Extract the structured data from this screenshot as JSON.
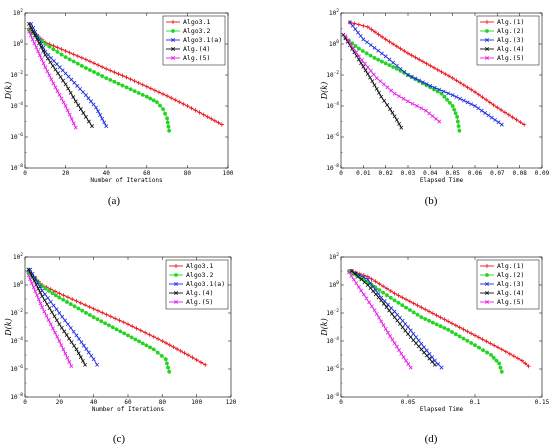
{
  "colors": {
    "red": "#e8141e",
    "green": "#21d521",
    "blue": "#1f2ee0",
    "black": "#111111",
    "magenta": "#e81ce8"
  },
  "chart_data": [
    {
      "panel_label": "(a)",
      "type": "line",
      "xlabel": "Number of Iterations",
      "ylabel": "D(k)",
      "xlim": [
        0,
        100
      ],
      "xticks": [
        0,
        20,
        40,
        60,
        80,
        100
      ],
      "yscale": "log",
      "ylim_exp": [
        -8,
        2
      ],
      "yticks": [
        "10^-8",
        "10^-6",
        "10^-4",
        "10^-2",
        "10^0",
        "10^2"
      ],
      "legend_position": "top-right",
      "series": [
        {
          "name": "Algo3.1",
          "color": "red",
          "marker": "plus",
          "points": [
            [
              2,
              1.0
            ],
            [
              10,
              0.1
            ],
            [
              20,
              -0.45
            ],
            [
              30,
              -1.0
            ],
            [
              40,
              -1.6
            ],
            [
              50,
              -2.15
            ],
            [
              60,
              -2.75
            ],
            [
              70,
              -3.35
            ],
            [
              80,
              -4.0
            ],
            [
              90,
              -4.7
            ],
            [
              97,
              -5.2
            ]
          ]
        },
        {
          "name": "Algo3.2",
          "color": "green",
          "marker": "dot",
          "points": [
            [
              2,
              0.9
            ],
            [
              10,
              0.0
            ],
            [
              20,
              -0.85
            ],
            [
              30,
              -1.55
            ],
            [
              40,
              -2.2
            ],
            [
              50,
              -2.8
            ],
            [
              60,
              -3.4
            ],
            [
              65,
              -3.75
            ],
            [
              68,
              -4.2
            ],
            [
              70,
              -4.8
            ],
            [
              71,
              -5.6
            ]
          ]
        },
        {
          "name": "Algo3.1(a)",
          "color": "blue",
          "marker": "x",
          "points": [
            [
              3,
              1.3
            ],
            [
              10,
              -0.5
            ],
            [
              20,
              -1.9
            ],
            [
              30,
              -3.3
            ],
            [
              35,
              -4.1
            ],
            [
              40,
              -5.3
            ]
          ]
        },
        {
          "name": "Alg.(4)",
          "color": "black",
          "marker": "x",
          "points": [
            [
              2,
              1.3
            ],
            [
              10,
              -0.7
            ],
            [
              20,
              -2.6
            ],
            [
              25,
              -3.7
            ],
            [
              30,
              -4.7
            ],
            [
              33,
              -5.3
            ]
          ]
        },
        {
          "name": "Alg.(5)",
          "color": "magenta",
          "marker": "x",
          "points": [
            [
              2,
              0.8
            ],
            [
              10,
              -1.5
            ],
            [
              15,
              -2.8
            ],
            [
              20,
              -4.0
            ],
            [
              25,
              -5.4
            ]
          ]
        }
      ]
    },
    {
      "panel_label": "(b)",
      "type": "line",
      "xlabel": "Elapsed Time",
      "ylabel": "D(k)",
      "xlim": [
        0,
        0.09
      ],
      "xticks": [
        0,
        0.01,
        0.02,
        0.03,
        0.04,
        0.05,
        0.06,
        0.07,
        0.08,
        0.09
      ],
      "yscale": "log",
      "ylim_exp": [
        -8,
        2
      ],
      "yticks": [
        "10^-8",
        "10^-6",
        "10^-4",
        "10^-2",
        "10^0",
        "10^2"
      ],
      "legend_position": "top-right",
      "series": [
        {
          "name": "Alg.(1)",
          "color": "red",
          "marker": "plus",
          "points": [
            [
              0.004,
              1.4
            ],
            [
              0.012,
              1.1
            ],
            [
              0.02,
              0.3
            ],
            [
              0.03,
              -0.6
            ],
            [
              0.04,
              -1.4
            ],
            [
              0.05,
              -2.2
            ],
            [
              0.06,
              -3.1
            ],
            [
              0.07,
              -4.1
            ],
            [
              0.082,
              -5.2
            ]
          ]
        },
        {
          "name": "Alg.(2)",
          "color": "green",
          "marker": "dot",
          "points": [
            [
              0.002,
              0.4
            ],
            [
              0.008,
              -0.3
            ],
            [
              0.015,
              -0.9
            ],
            [
              0.025,
              -1.6
            ],
            [
              0.035,
              -2.4
            ],
            [
              0.045,
              -3.2
            ],
            [
              0.05,
              -4.0
            ],
            [
              0.052,
              -4.7
            ],
            [
              0.053,
              -5.6
            ]
          ]
        },
        {
          "name": "Alg.(3)",
          "color": "blue",
          "marker": "x",
          "points": [
            [
              0.004,
              1.4
            ],
            [
              0.01,
              0.3
            ],
            [
              0.02,
              -0.8
            ],
            [
              0.03,
              -2.0
            ],
            [
              0.04,
              -2.7
            ],
            [
              0.05,
              -3.3
            ],
            [
              0.06,
              -4.0
            ],
            [
              0.066,
              -4.6
            ],
            [
              0.072,
              -5.2
            ]
          ]
        },
        {
          "name": "Alg.(4)",
          "color": "black",
          "marker": "x",
          "points": [
            [
              0.001,
              0.6
            ],
            [
              0.008,
              -1.0
            ],
            [
              0.014,
              -2.4
            ],
            [
              0.018,
              -3.4
            ],
            [
              0.022,
              -4.2
            ],
            [
              0.025,
              -4.9
            ],
            [
              0.027,
              -5.4
            ]
          ]
        },
        {
          "name": "Alg.(5)",
          "color": "magenta",
          "marker": "x",
          "points": [
            [
              0.002,
              0.5
            ],
            [
              0.008,
              -0.8
            ],
            [
              0.016,
              -2.2
            ],
            [
              0.024,
              -3.2
            ],
            [
              0.03,
              -3.7
            ],
            [
              0.038,
              -4.3
            ],
            [
              0.044,
              -5.0
            ]
          ]
        }
      ]
    },
    {
      "panel_label": "(c)",
      "type": "line",
      "xlabel": "Number of Iterations",
      "ylabel": "D(k)",
      "xlim": [
        0,
        120
      ],
      "xticks": [
        0,
        20,
        40,
        60,
        80,
        100,
        120
      ],
      "yscale": "log",
      "ylim_exp": [
        -8,
        2
      ],
      "yticks": [
        "10^-8",
        "10^-6",
        "10^-4",
        "10^-2",
        "10^0",
        "10^2"
      ],
      "legend_position": "top-right",
      "series": [
        {
          "name": "Algo3.1",
          "color": "red",
          "marker": "plus",
          "points": [
            [
              2,
              1.0
            ],
            [
              10,
              0.0
            ],
            [
              20,
              -0.6
            ],
            [
              40,
              -1.7
            ],
            [
              60,
              -2.8
            ],
            [
              80,
              -4.0
            ],
            [
              95,
              -5.0
            ],
            [
              105,
              -5.7
            ]
          ]
        },
        {
          "name": "Algo3.2",
          "color": "green",
          "marker": "dot",
          "points": [
            [
              2,
              0.9
            ],
            [
              10,
              -0.1
            ],
            [
              20,
              -0.9
            ],
            [
              40,
              -2.3
            ],
            [
              60,
              -3.6
            ],
            [
              75,
              -4.6
            ],
            [
              82,
              -5.3
            ],
            [
              84,
              -6.2
            ]
          ]
        },
        {
          "name": "Algo3.1(a)",
          "color": "blue",
          "marker": "x",
          "points": [
            [
              3,
              1.1
            ],
            [
              10,
              -0.4
            ],
            [
              20,
              -2.0
            ],
            [
              30,
              -3.6
            ],
            [
              40,
              -5.3
            ],
            [
              42,
              -5.7
            ]
          ]
        },
        {
          "name": "Alg.(4)",
          "color": "black",
          "marker": "x",
          "points": [
            [
              2,
              1.1
            ],
            [
              10,
              -0.8
            ],
            [
              20,
              -2.8
            ],
            [
              30,
              -4.6
            ],
            [
              35,
              -5.7
            ]
          ]
        },
        {
          "name": "Alg.(5)",
          "color": "magenta",
          "marker": "x",
          "points": [
            [
              2,
              0.7
            ],
            [
              10,
              -1.6
            ],
            [
              20,
              -4.0
            ],
            [
              27,
              -5.8
            ]
          ]
        }
      ]
    },
    {
      "panel_label": "(d)",
      "type": "line",
      "xlabel": "Elapsed Time",
      "ylabel": "D(k)",
      "xlim": [
        0,
        0.15
      ],
      "xticks": [
        0,
        0.05,
        0.1,
        0.15
      ],
      "yscale": "log",
      "ylim_exp": [
        -8,
        2
      ],
      "yticks": [
        "10^-8",
        "10^-6",
        "10^-4",
        "10^-2",
        "10^0",
        "10^2"
      ],
      "legend_position": "top-right",
      "series": [
        {
          "name": "Alg.(1)",
          "color": "red",
          "marker": "plus",
          "points": [
            [
              0.008,
              1.0
            ],
            [
              0.02,
              0.6
            ],
            [
              0.04,
              -0.6
            ],
            [
              0.06,
              -1.6
            ],
            [
              0.08,
              -2.6
            ],
            [
              0.1,
              -3.6
            ],
            [
              0.12,
              -4.6
            ],
            [
              0.135,
              -5.4
            ],
            [
              0.14,
              -5.8
            ]
          ]
        },
        {
          "name": "Alg.(2)",
          "color": "green",
          "marker": "dot",
          "points": [
            [
              0.006,
              1.0
            ],
            [
              0.02,
              0.2
            ],
            [
              0.04,
              -1.1
            ],
            [
              0.06,
              -2.3
            ],
            [
              0.08,
              -3.2
            ],
            [
              0.1,
              -4.3
            ],
            [
              0.112,
              -5.0
            ],
            [
              0.118,
              -5.6
            ],
            [
              0.12,
              -6.2
            ]
          ]
        },
        {
          "name": "Alg.(3)",
          "color": "blue",
          "marker": "x",
          "points": [
            [
              0.008,
              1.0
            ],
            [
              0.02,
              0.4
            ],
            [
              0.03,
              -0.9
            ],
            [
              0.04,
              -1.9
            ],
            [
              0.05,
              -3.0
            ],
            [
              0.06,
              -4.2
            ],
            [
              0.07,
              -5.4
            ],
            [
              0.075,
              -5.9
            ]
          ]
        },
        {
          "name": "Alg.(4)",
          "color": "black",
          "marker": "x",
          "points": [
            [
              0.008,
              1.0
            ],
            [
              0.02,
              0.0
            ],
            [
              0.03,
              -1.1
            ],
            [
              0.04,
              -2.3
            ],
            [
              0.05,
              -3.5
            ],
            [
              0.06,
              -4.6
            ],
            [
              0.07,
              -5.7
            ]
          ]
        },
        {
          "name": "Alg.(5)",
          "color": "magenta",
          "marker": "x",
          "points": [
            [
              0.006,
              0.9
            ],
            [
              0.015,
              -0.4
            ],
            [
              0.025,
              -1.8
            ],
            [
              0.035,
              -3.4
            ],
            [
              0.045,
              -4.9
            ],
            [
              0.052,
              -5.9
            ]
          ]
        }
      ]
    }
  ]
}
